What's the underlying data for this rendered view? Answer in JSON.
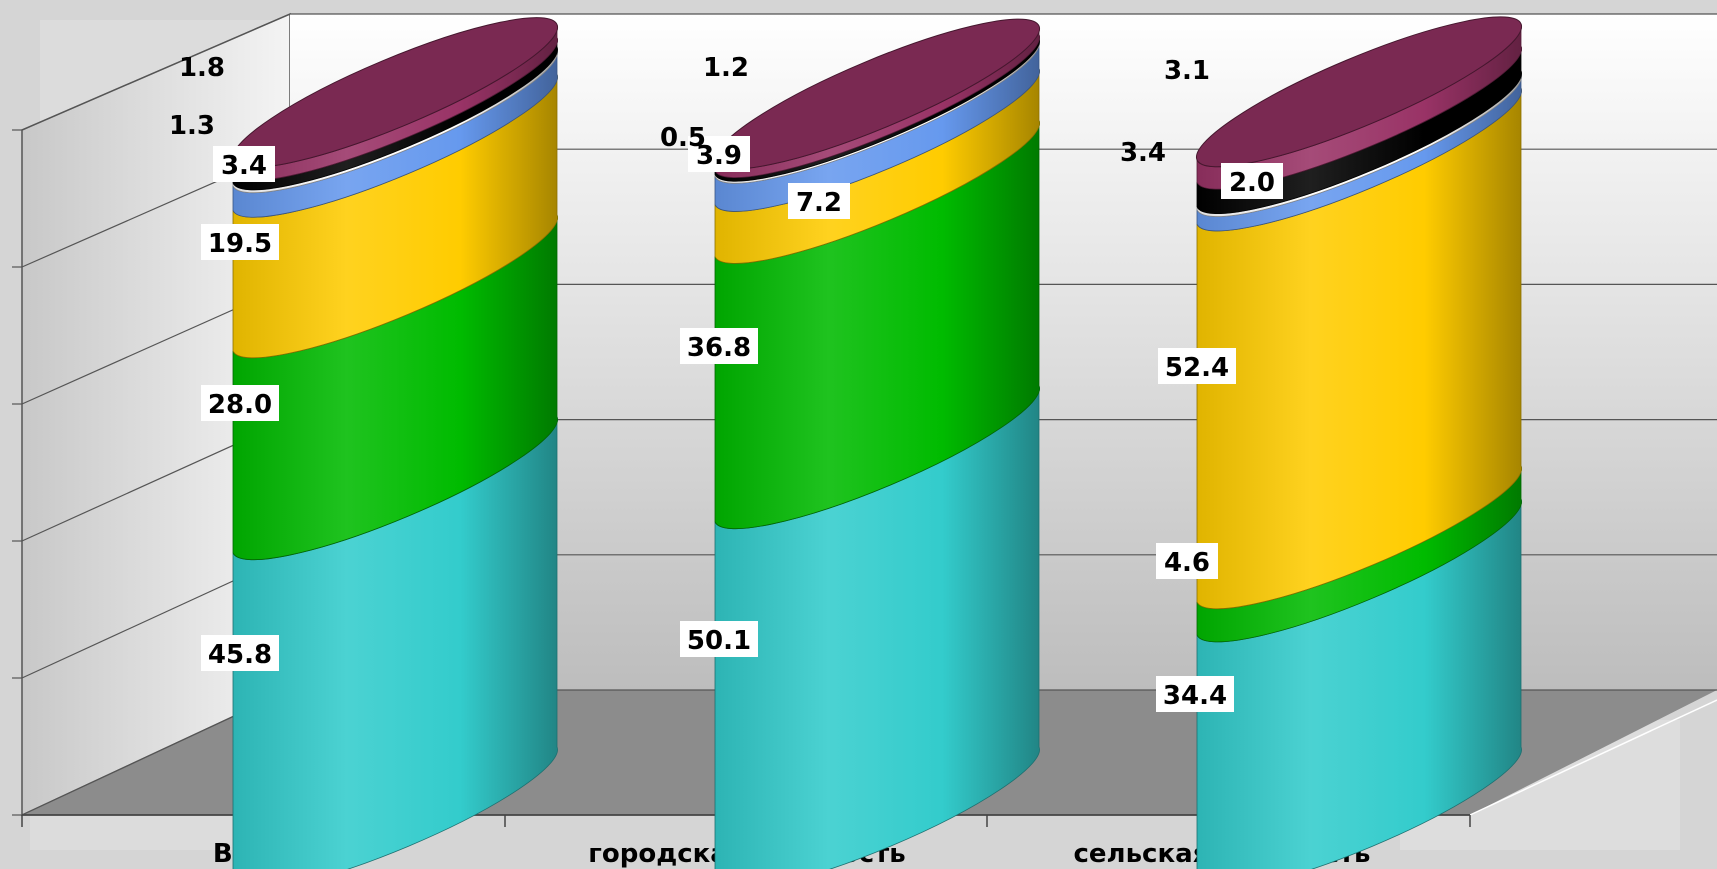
{
  "chart_data": {
    "type": "bar",
    "stacked": true,
    "style": "3d-cylinder",
    "categories": [
      "Всего",
      "городская местность",
      "сельская местность"
    ],
    "series": [
      {
        "values": [
          45.8,
          50.1,
          34.4
        ],
        "color": "#33cccc"
      },
      {
        "values": [
          28.0,
          36.8,
          4.6
        ],
        "color": "#00bb00"
      },
      {
        "values": [
          19.5,
          7.2,
          52.4
        ],
        "color": "#ffcc00"
      },
      {
        "values": [
          3.4,
          3.9,
          2.0
        ],
        "color": "#6699ee"
      },
      {
        "values": [
          0.4,
          0.3,
          0.4
        ],
        "color": "#ffffff"
      },
      {
        "values": [
          1.3,
          0.5,
          3.4
        ],
        "color": "#000000"
      },
      {
        "values": [
          1.8,
          1.2,
          3.1
        ],
        "color": "#993366"
      }
    ],
    "data_labels": [
      [
        "45.8",
        "28.0",
        "19.5",
        "3.4",
        "",
        "1.3",
        "1.8"
      ],
      [
        "50.1",
        "36.8",
        "7.2",
        "3.9",
        "",
        "0.5",
        "1.2"
      ],
      [
        "34.4",
        "4.6",
        "52.4",
        "2.0",
        "",
        "3.4",
        "3.1"
      ]
    ],
    "ylim": [
      0,
      100
    ],
    "grid": true,
    "title": "",
    "xlabel": "",
    "ylabel": ""
  }
}
